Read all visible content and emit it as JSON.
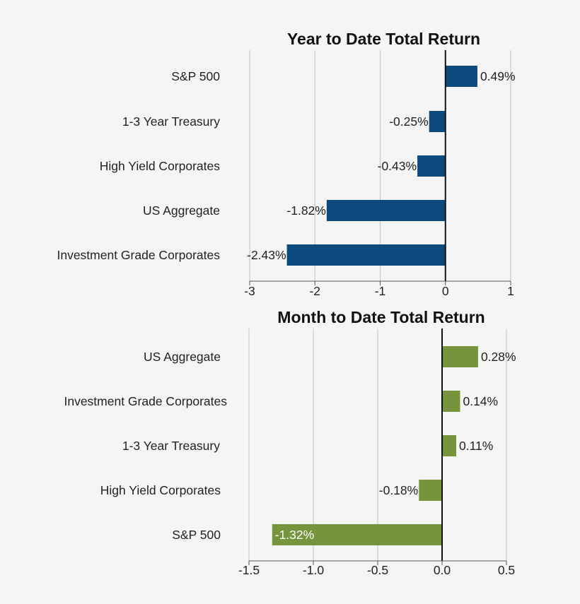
{
  "chart_data": [
    {
      "type": "bar",
      "orientation": "horizontal",
      "title": "Year to Date Total Return",
      "categories": [
        "S&P 500",
        "1-3 Year Treasury",
        "High Yield Corporates",
        "US Aggregate",
        "Investment Grade Corporates"
      ],
      "values": [
        0.49,
        -0.25,
        -0.43,
        -1.82,
        -2.43
      ],
      "value_labels": [
        "0.49%",
        "-0.25%",
        "-0.43%",
        "-1.82%",
        "-2.43%"
      ],
      "xlim": [
        -3,
        1
      ],
      "xticks": [
        -3,
        -2,
        -1,
        0,
        1
      ],
      "xtick_labels": [
        "-3",
        "-2",
        "-1",
        "0",
        "1"
      ],
      "grid": "vertical",
      "color": "#0c4a7d",
      "xlabel": "",
      "ylabel": ""
    },
    {
      "type": "bar",
      "orientation": "horizontal",
      "title": "Month to Date Total Return",
      "categories": [
        "US Aggregate",
        "Investment Grade Corporates",
        "1-3 Year Treasury",
        "High Yield Corporates",
        "S&P 500"
      ],
      "values": [
        0.28,
        0.14,
        0.11,
        -0.18,
        -1.32
      ],
      "value_labels": [
        "0.28%",
        "0.14%",
        "0.11%",
        "-0.18%",
        "-1.32%"
      ],
      "xlim": [
        -1.5,
        0.5
      ],
      "xticks": [
        -1.5,
        -1.0,
        -0.5,
        0.0,
        0.5
      ],
      "xtick_labels": [
        "-1.5",
        "-1.0",
        "-0.5",
        "0.0",
        "0.5"
      ],
      "grid": "vertical",
      "color": "#76943b",
      "xlabel": "",
      "ylabel": ""
    }
  ]
}
